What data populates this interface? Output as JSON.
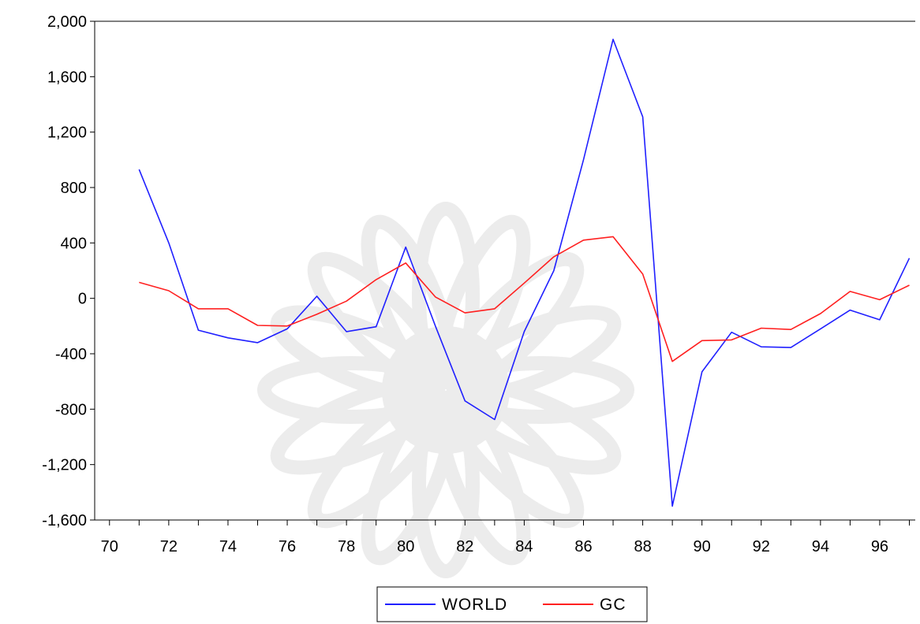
{
  "chart_data": {
    "type": "line",
    "title": "",
    "xlabel": "",
    "ylabel": "",
    "x": [
      71,
      72,
      73,
      74,
      75,
      76,
      77,
      78,
      79,
      80,
      81,
      82,
      83,
      84,
      85,
      86,
      87,
      88,
      89,
      90,
      91,
      92,
      93,
      94,
      95,
      96,
      97
    ],
    "xlim": [
      69.5,
      97.2
    ],
    "ylim": [
      -1600,
      2000
    ],
    "x_tick_labels": [
      "70",
      "72",
      "74",
      "76",
      "78",
      "80",
      "82",
      "84",
      "86",
      "88",
      "90",
      "92",
      "94",
      "96"
    ],
    "y_tick_labels": [
      "2,000",
      "1,600",
      "1,200",
      "800",
      "400",
      "0",
      "-400",
      "-800",
      "-1,200",
      "-1,600"
    ],
    "series": [
      {
        "name": "WORLD",
        "color": "#2020ff",
        "values": [
          930,
          400,
          -230,
          -285,
          -320,
          -220,
          15,
          -240,
          -205,
          370,
          -200,
          -740,
          -875,
          -240,
          200,
          1000,
          1870,
          1310,
          -1500,
          -530,
          -245,
          -350,
          -355,
          -220,
          -85,
          -155,
          290
        ]
      },
      {
        "name": "GC",
        "color": "#ff2020",
        "values": [
          115,
          55,
          -75,
          -75,
          -195,
          -200,
          -115,
          -20,
          135,
          255,
          10,
          -105,
          -75,
          110,
          300,
          420,
          445,
          175,
          -455,
          -305,
          -300,
          -215,
          -225,
          -110,
          50,
          -10,
          95
        ]
      }
    ],
    "legend": {
      "position": "bottom-center"
    },
    "grid": false
  }
}
